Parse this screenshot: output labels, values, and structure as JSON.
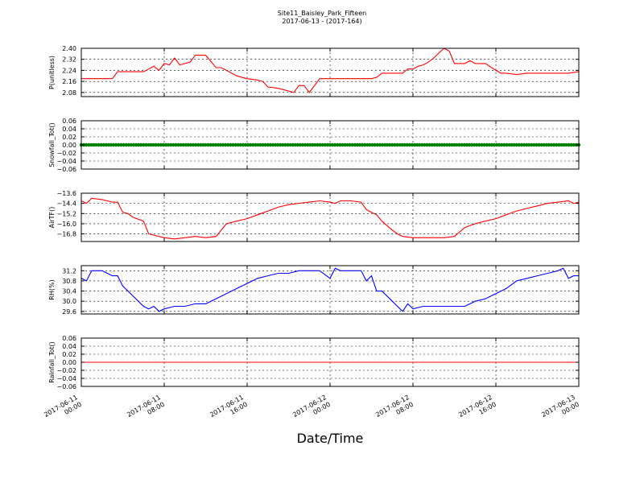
{
  "figure": {
    "title_line1": "Site11_Baisley_Park_Fifteen",
    "title_line2": "2017-06-13 - (2017-164)",
    "xlabel": "Date/Time",
    "xtick_labels": [
      [
        "2017-06-11",
        "00:00"
      ],
      [
        "2017-06-11",
        "08:00"
      ],
      [
        "2017-06-11",
        "16:00"
      ],
      [
        "2017-06-12",
        "00:00"
      ],
      [
        "2017-06-12",
        "08:00"
      ],
      [
        "2017-06-12",
        "16:00"
      ],
      [
        "2017-06-13",
        "00:00"
      ]
    ]
  },
  "chart_data": [
    {
      "type": "line",
      "ylabel": "P(unitless)",
      "color": "#ff0000",
      "ylim": [
        2.05,
        2.4
      ],
      "yticks": [
        "2.40",
        "2.32",
        "2.24",
        "2.16",
        "2.08"
      ],
      "ytick_values": [
        2.4,
        2.32,
        2.24,
        2.16,
        2.08
      ],
      "xlim_hours": [
        0,
        48
      ],
      "grid": true,
      "series": [
        {
          "x": [
            0,
            1,
            2,
            3,
            3.5,
            4,
            5,
            6,
            6.5,
            7,
            7.5,
            8,
            8.5,
            9,
            9.5,
            10,
            10.5,
            11,
            11.5,
            12,
            13,
            13.5,
            14,
            15,
            16,
            17,
            17.5,
            18,
            19,
            20,
            20.5,
            21,
            21.5,
            22,
            23,
            24,
            25,
            26,
            27,
            28,
            28.5,
            29,
            30,
            31,
            31.5,
            32,
            32.5,
            33,
            33.5,
            34,
            35,
            35.5,
            36,
            37,
            37.5,
            38,
            39,
            40,
            40.5,
            41,
            42,
            43,
            44,
            45,
            46,
            47,
            48
          ],
          "y": [
            2.18,
            2.18,
            2.18,
            2.18,
            2.23,
            2.23,
            2.23,
            2.23,
            2.25,
            2.27,
            2.24,
            2.29,
            2.28,
            2.33,
            2.28,
            2.29,
            2.3,
            2.35,
            2.35,
            2.35,
            2.26,
            2.26,
            2.24,
            2.2,
            2.18,
            2.17,
            2.16,
            2.12,
            2.11,
            2.09,
            2.08,
            2.13,
            2.13,
            2.08,
            2.18,
            2.18,
            2.18,
            2.18,
            2.18,
            2.18,
            2.19,
            2.22,
            2.22,
            2.22,
            2.25,
            2.25,
            2.27,
            2.28,
            2.3,
            2.33,
            2.4,
            2.38,
            2.29,
            2.29,
            2.31,
            2.29,
            2.29,
            2.24,
            2.22,
            2.22,
            2.21,
            2.22,
            2.22,
            2.22,
            2.22,
            2.22,
            2.23
          ]
        }
      ]
    },
    {
      "type": "scatter",
      "ylabel": "Snowfall_Tot()",
      "color": "#007f00",
      "ylim": [
        -0.06,
        0.06
      ],
      "yticks": [
        "0.06",
        "0.04",
        "0.02",
        "0.00",
        "−0.02",
        "−0.04",
        "−0.06"
      ],
      "ytick_values": [
        0.06,
        0.04,
        0.02,
        0.0,
        -0.02,
        -0.04,
        -0.06
      ],
      "xlim_hours": [
        0,
        48
      ],
      "grid": true,
      "series": [
        {
          "x_start": 0,
          "x_end": 48,
          "value": 0.0
        }
      ]
    },
    {
      "type": "line",
      "ylabel": "AirTF()",
      "color": "#ff0000",
      "ylim": [
        -17.4,
        -13.6
      ],
      "yticks": [
        "−13.6",
        "−14.4",
        "−15.2",
        "−16.0",
        "−16.8"
      ],
      "ytick_values": [
        -13.6,
        -14.4,
        -15.2,
        -16.0,
        -16.8
      ],
      "xlim_hours": [
        0,
        48
      ],
      "grid": true,
      "series": [
        {
          "x": [
            0,
            0.5,
            1,
            2,
            3,
            3.5,
            4,
            4.5,
            5,
            6,
            6.5,
            7,
            7.5,
            8,
            9,
            10,
            11,
            12,
            13,
            14,
            15,
            16,
            17,
            18,
            19,
            20,
            21,
            22,
            23,
            24,
            24.5,
            25,
            26,
            27,
            27.5,
            28,
            28.5,
            29,
            30,
            30.5,
            31,
            32,
            33,
            34,
            35,
            36,
            37,
            38,
            39,
            40,
            41,
            42,
            43,
            44,
            45,
            46,
            47,
            47.5,
            48
          ],
          "y": [
            -14.2,
            -14.4,
            -14.0,
            -14.1,
            -14.3,
            -14.3,
            -15.1,
            -15.2,
            -15.5,
            -15.8,
            -16.8,
            -16.9,
            -17.0,
            -17.1,
            -17.2,
            -17.1,
            -17.0,
            -17.1,
            -17.0,
            -16.0,
            -15.8,
            -15.6,
            -15.3,
            -15.0,
            -14.7,
            -14.5,
            -14.4,
            -14.3,
            -14.2,
            -14.3,
            -14.4,
            -14.2,
            -14.2,
            -14.3,
            -14.9,
            -15.1,
            -15.3,
            -15.8,
            -16.5,
            -16.8,
            -17.0,
            -17.1,
            -17.1,
            -17.1,
            -17.1,
            -17.0,
            -16.3,
            -16.0,
            -15.8,
            -15.6,
            -15.3,
            -15.0,
            -14.8,
            -14.6,
            -14.4,
            -14.3,
            -14.2,
            -14.4,
            -14.3
          ]
        }
      ]
    },
    {
      "type": "line",
      "ylabel": "RH(%)",
      "color": "#0000ff",
      "ylim": [
        29.5,
        31.4
      ],
      "yticks": [
        "31.2",
        "30.8",
        "30.4",
        "30.0",
        "29.6"
      ],
      "ytick_values": [
        31.2,
        30.8,
        30.4,
        30.0,
        29.6
      ],
      "xlim_hours": [
        0,
        48
      ],
      "grid": true,
      "series": [
        {
          "x": [
            0,
            0.5,
            1,
            2,
            3,
            3.5,
            4,
            5,
            6,
            6.5,
            7,
            7.5,
            8,
            9,
            10,
            11,
            12,
            13,
            14,
            15,
            16,
            17,
            18,
            19,
            20,
            21,
            22,
            23,
            24,
            24.5,
            25,
            26,
            27,
            27.5,
            28,
            28.5,
            29,
            30,
            30.5,
            31,
            31.5,
            32,
            33,
            34,
            35,
            36,
            37,
            38,
            39,
            40,
            41,
            42,
            43,
            44,
            45,
            46,
            46.5,
            47,
            47.5,
            48
          ],
          "y": [
            30.9,
            30.8,
            31.2,
            31.2,
            31.0,
            31.0,
            30.6,
            30.2,
            29.8,
            29.7,
            29.8,
            29.6,
            29.7,
            29.8,
            29.8,
            29.9,
            29.9,
            30.1,
            30.3,
            30.5,
            30.7,
            30.9,
            31.0,
            31.1,
            31.1,
            31.2,
            31.2,
            31.2,
            30.9,
            31.3,
            31.2,
            31.2,
            31.2,
            30.8,
            31.0,
            30.4,
            30.4,
            30.0,
            29.8,
            29.6,
            29.9,
            29.7,
            29.8,
            29.8,
            29.8,
            29.8,
            29.8,
            30.0,
            30.1,
            30.3,
            30.5,
            30.8,
            30.9,
            31.0,
            31.1,
            31.2,
            31.3,
            30.9,
            31.0,
            31.0
          ]
        }
      ]
    },
    {
      "type": "line",
      "ylabel": "Rainfall_Tot()",
      "color": "#ff0000",
      "ylim": [
        -0.06,
        0.06
      ],
      "yticks": [
        "0.06",
        "0.04",
        "0.02",
        "0.00",
        "−0.02",
        "−0.04",
        "−0.06"
      ],
      "ytick_values": [
        0.06,
        0.04,
        0.02,
        0.0,
        -0.02,
        -0.04,
        -0.06
      ],
      "xlim_hours": [
        0,
        48
      ],
      "grid": true,
      "series": [
        {
          "x": [
            0,
            48
          ],
          "y": [
            0.0,
            0.0
          ]
        }
      ]
    }
  ]
}
